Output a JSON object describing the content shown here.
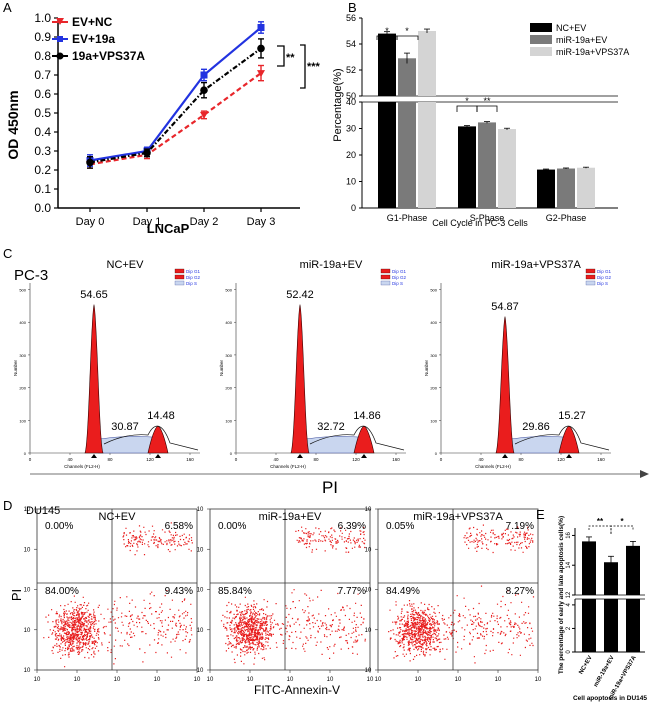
{
  "colors": {
    "red": "#e8262b",
    "blue": "#2233e0",
    "black": "#000000",
    "dark_gray": "#7a7a7a",
    "light_gray": "#d4d4d4",
    "dot_red": "#e81c1c",
    "hist_red": "#ea1d1d"
  },
  "chart_data": [
    {
      "panel": "A",
      "type": "line",
      "categories": [
        "Day 0",
        "Day 1",
        "Day 2",
        "Day 3"
      ],
      "series": [
        {
          "name": "EV+NC",
          "values": [
            0.23,
            0.28,
            0.49,
            0.71
          ],
          "errors": [
            0.02,
            0.02,
            0.02,
            0.04
          ]
        },
        {
          "name": "EV+19a",
          "values": [
            0.25,
            0.3,
            0.7,
            0.95
          ],
          "errors": [
            0.03,
            0.02,
            0.03,
            0.03
          ]
        },
        {
          "name": "19a+VPS37A",
          "values": [
            0.24,
            0.29,
            0.62,
            0.84
          ],
          "errors": [
            0.03,
            0.02,
            0.04,
            0.05
          ]
        }
      ],
      "ylabel": "OD 450nm",
      "xlabel": "LNCaP",
      "ylim": [
        0.0,
        1.0
      ],
      "yticks": [
        "0.0",
        "0.1",
        "0.2",
        "0.3",
        "0.4",
        "0.5",
        "0.6",
        "0.7",
        "0.8",
        "0.9",
        "1.0"
      ],
      "significance": [
        "**",
        "***"
      ]
    },
    {
      "panel": "B",
      "type": "bar",
      "categories": [
        "G1-Phase",
        "S-Phase",
        "G2-Phase"
      ],
      "series": [
        {
          "name": "NC+EV",
          "values": [
            54.8,
            30.8,
            14.5
          ],
          "errors": [
            0.15,
            0.3,
            0.2
          ]
        },
        {
          "name": "miR-19a+EV",
          "values": [
            52.9,
            32.3,
            14.9
          ],
          "errors": [
            0.4,
            0.3,
            0.2
          ]
        },
        {
          "name": "miR-19a+VPS37A",
          "values": [
            55.0,
            29.8,
            15.2
          ],
          "errors": [
            0.15,
            0.3,
            0.2
          ]
        }
      ],
      "ylabel": "Percentage(%)",
      "xlabel": "Cell Cycle in PC-3 Cells",
      "ylim_lower": [
        0,
        40
      ],
      "ylim_upper": [
        50,
        56
      ],
      "yticks_lower": [
        "0",
        "10",
        "20",
        "30",
        "40"
      ],
      "yticks_upper": [
        "50",
        "52",
        "54",
        "56"
      ],
      "significance": [
        "*",
        "*",
        "*",
        "**"
      ]
    },
    {
      "panel": "E",
      "type": "bar",
      "categories": [
        "NC+EV",
        "miR-19a+EV",
        "miR-19a+VPS37A"
      ],
      "values": [
        15.6,
        14.2,
        15.3
      ],
      "errors": [
        0.3,
        0.4,
        0.3
      ],
      "ylabel": "The percentage of early and late apoptosis cells(%)",
      "xlabel": "Cell apoptosis in DU145",
      "yticks_lower": [
        "0",
        "2",
        "4"
      ],
      "yticks_upper": [
        "12",
        "14",
        "16"
      ],
      "significance": [
        "**",
        "*"
      ]
    }
  ],
  "panel_a": {
    "letter": "A",
    "legend": [
      "EV+NC",
      "EV+19a",
      "19a+VPS37A"
    ]
  },
  "panel_b": {
    "letter": "B",
    "legend": [
      "NC+EV",
      "miR-19a+EV",
      "miR-19a+VPS37A"
    ]
  },
  "panel_c": {
    "letter": "C",
    "cell_line": "PC-3",
    "axis_title": "PI",
    "x_label": "Channels (FL2-H)",
    "y_label": "Number",
    "x_ticks": [
      "0",
      "40",
      "80",
      "120",
      "160"
    ],
    "y_ticks": [
      "0",
      "100",
      "200",
      "300",
      "400",
      "500"
    ],
    "legend": [
      "Dip G1",
      "Dip G2",
      "Dip S"
    ],
    "plots": [
      {
        "title": "NC+EV",
        "g1": "54.65",
        "s": "30.87",
        "g2": "14.48",
        "g1_peak": 0.87
      },
      {
        "title": "miR-19a+EV",
        "g1": "52.42",
        "s": "32.72",
        "g2": "14.86",
        "g1_peak": 0.87
      },
      {
        "title": "miR-19a+VPS37A",
        "g1": "54.87",
        "s": "29.86",
        "g2": "15.27",
        "g1_peak": 0.8
      }
    ]
  },
  "panel_d": {
    "letter": "D",
    "cell_line": "DU145",
    "x_axis_title": "FITC-Annexin-V",
    "y_axis_title": "PI",
    "plots": [
      {
        "title": "NC+EV",
        "ul": "0.00%",
        "ur": "6.58%",
        "ll": "84.00%",
        "lr": "9.43%"
      },
      {
        "title": "miR-19a+EV",
        "ul": "0.00%",
        "ur": "6.39%",
        "ll": "85.84%",
        "lr": "7.77%"
      },
      {
        "title": "miR-19a+VPS37A",
        "ul": "0.05%",
        "ur": "7.19%",
        "ll": "84.49%",
        "lr": "8.27%"
      }
    ]
  },
  "panel_e": {
    "letter": "E"
  }
}
